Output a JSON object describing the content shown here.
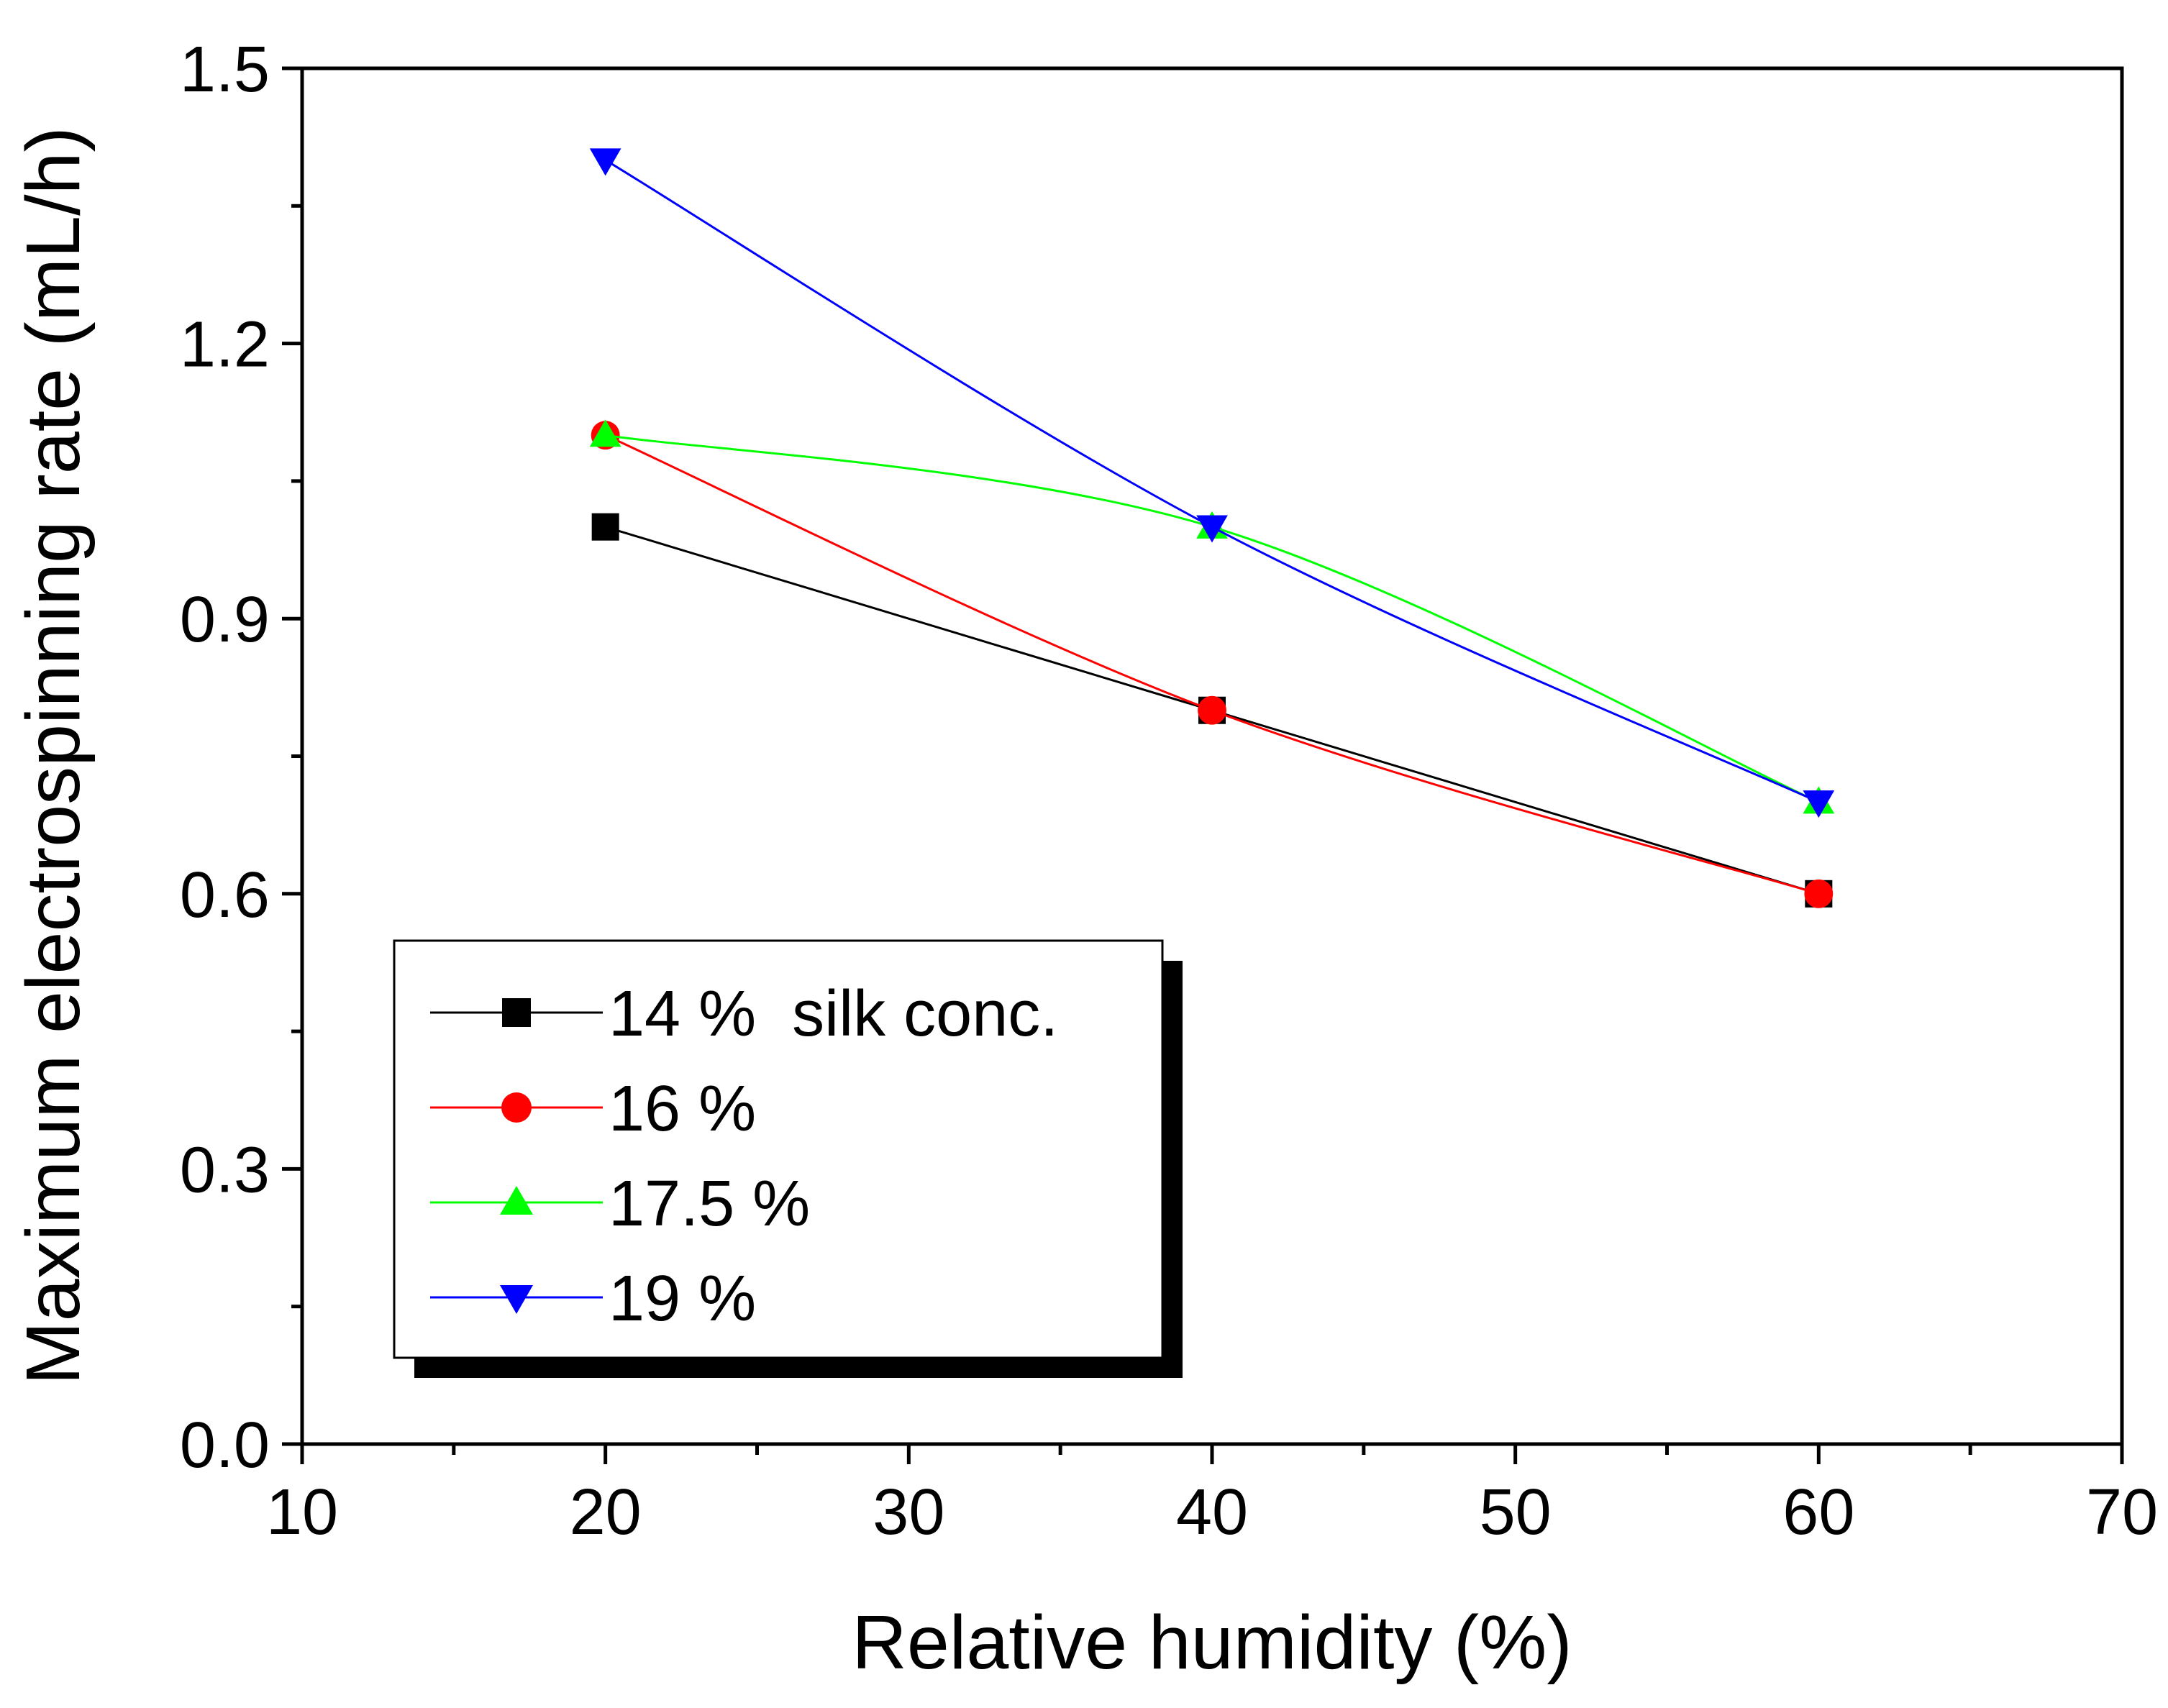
{
  "chart_data": {
    "type": "line",
    "xlabel": "Relative humidity (%)",
    "ylabel": "Maximum electrospinning rate (mL/h)",
    "xlim": [
      10,
      70
    ],
    "ylim": [
      0.0,
      1.5
    ],
    "x_ticks": [
      10,
      20,
      30,
      40,
      50,
      60,
      70
    ],
    "x_tick_labels": [
      "10",
      "20",
      "30",
      "40",
      "50",
      "60",
      "70"
    ],
    "y_ticks": [
      0.0,
      0.3,
      0.6,
      0.9,
      1.2,
      1.5
    ],
    "y_tick_labels": [
      "0.0",
      "0.3",
      "0.6",
      "0.9",
      "1.2",
      "1.5"
    ],
    "grid": false,
    "legend_position": "bottom-left",
    "legend_frame_shadow": true,
    "x": [
      20,
      40,
      60
    ],
    "series": [
      {
        "name": "14 %  silk conc.",
        "values": [
          1.0,
          0.8,
          0.6
        ],
        "color": "#000000",
        "marker": "square"
      },
      {
        "name": "16 %",
        "values": [
          1.1,
          0.8,
          0.6
        ],
        "color": "#ff0000",
        "marker": "circle"
      },
      {
        "name": "17.5 %",
        "values": [
          1.1,
          1.0,
          0.7
        ],
        "color": "#00ff00",
        "marker": "triangle-up"
      },
      {
        "name": "19 %",
        "values": [
          1.4,
          1.0,
          0.7
        ],
        "color": "#0000ff",
        "marker": "triangle-down"
      }
    ]
  }
}
